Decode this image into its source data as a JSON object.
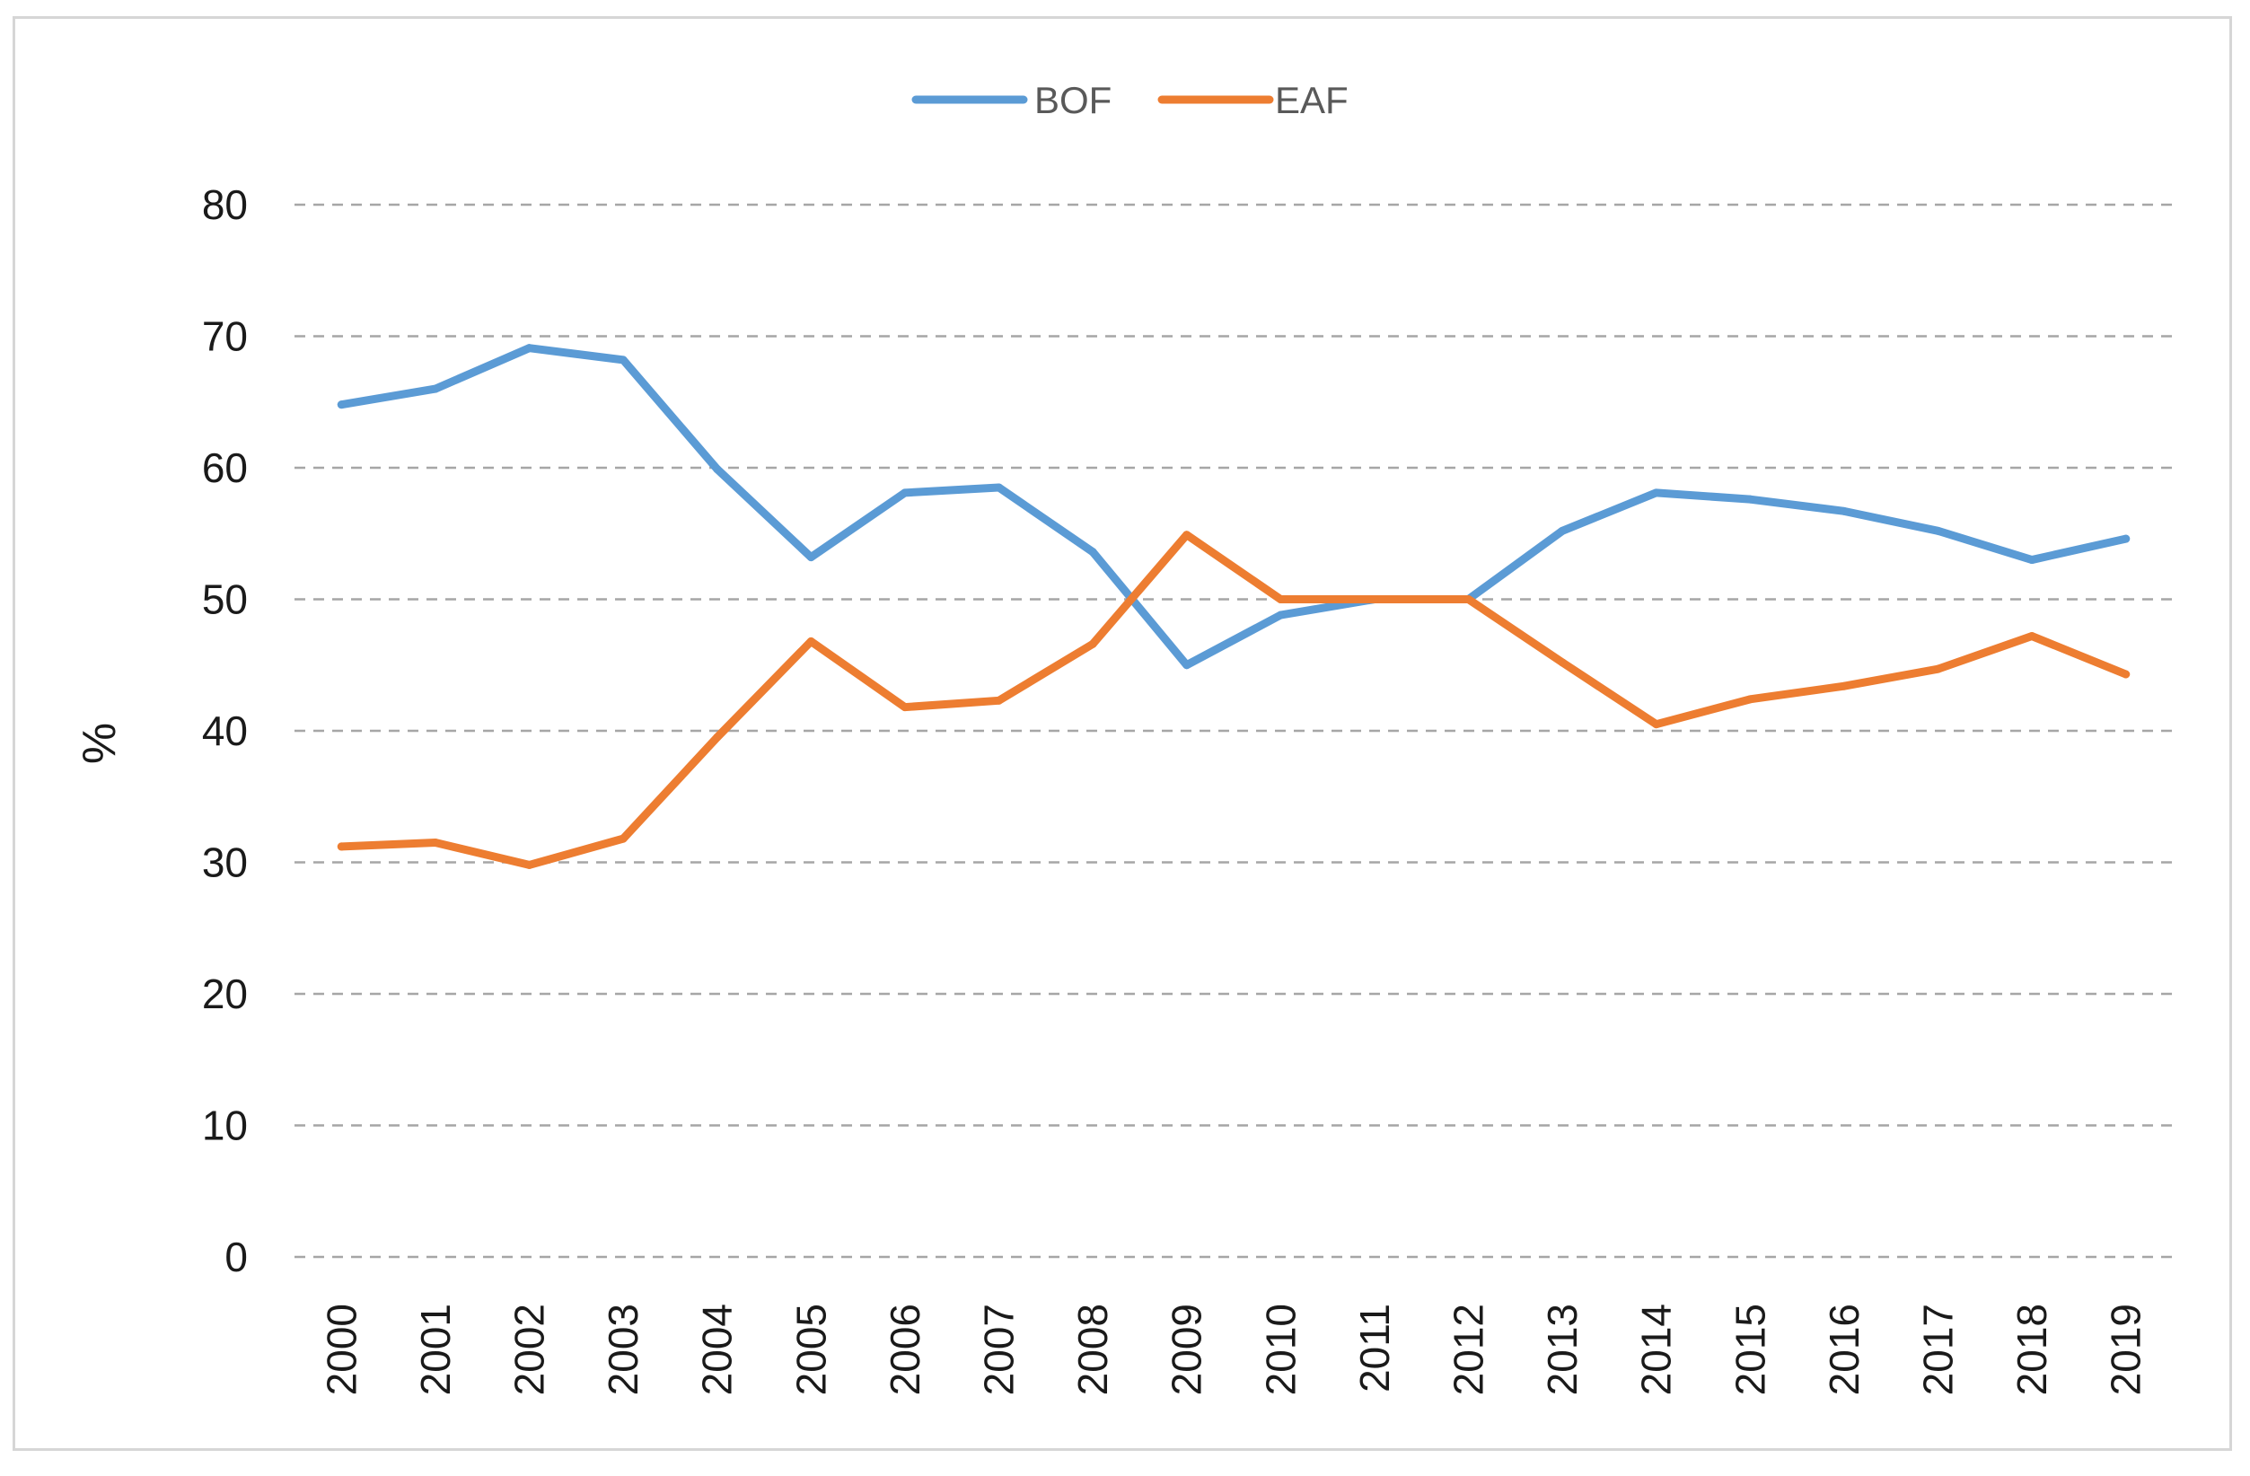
{
  "chart_data": {
    "type": "line",
    "title": "",
    "xlabel": "",
    "ylabel": "%",
    "ylim": [
      0,
      80
    ],
    "yticks": [
      0,
      10,
      20,
      30,
      40,
      50,
      60,
      70,
      80
    ],
    "grid": true,
    "legend_position": "top-center",
    "categories": [
      "2000",
      "2001",
      "2002",
      "2003",
      "2004",
      "2005",
      "2006",
      "2007",
      "2008",
      "2009",
      "2010",
      "2011",
      "2012",
      "2013",
      "2014",
      "2015",
      "2016",
      "2017",
      "2018",
      "2019"
    ],
    "series": [
      {
        "name": "BOF",
        "color": "#5b9bd5",
        "values": [
          64.8,
          66.0,
          69.1,
          68.2,
          59.9,
          53.2,
          58.1,
          58.5,
          53.6,
          45.0,
          48.8,
          50.0,
          50.0,
          55.2,
          58.1,
          57.6,
          56.7,
          55.2,
          53.0,
          54.6
        ]
      },
      {
        "name": "EAF",
        "color": "#ed7d31",
        "values": [
          31.2,
          31.5,
          29.8,
          31.8,
          39.5,
          46.8,
          41.8,
          42.3,
          46.6,
          54.9,
          50.0,
          50.0,
          50.0,
          45.2,
          40.5,
          42.4,
          43.4,
          44.7,
          47.2,
          44.3
        ]
      }
    ]
  }
}
